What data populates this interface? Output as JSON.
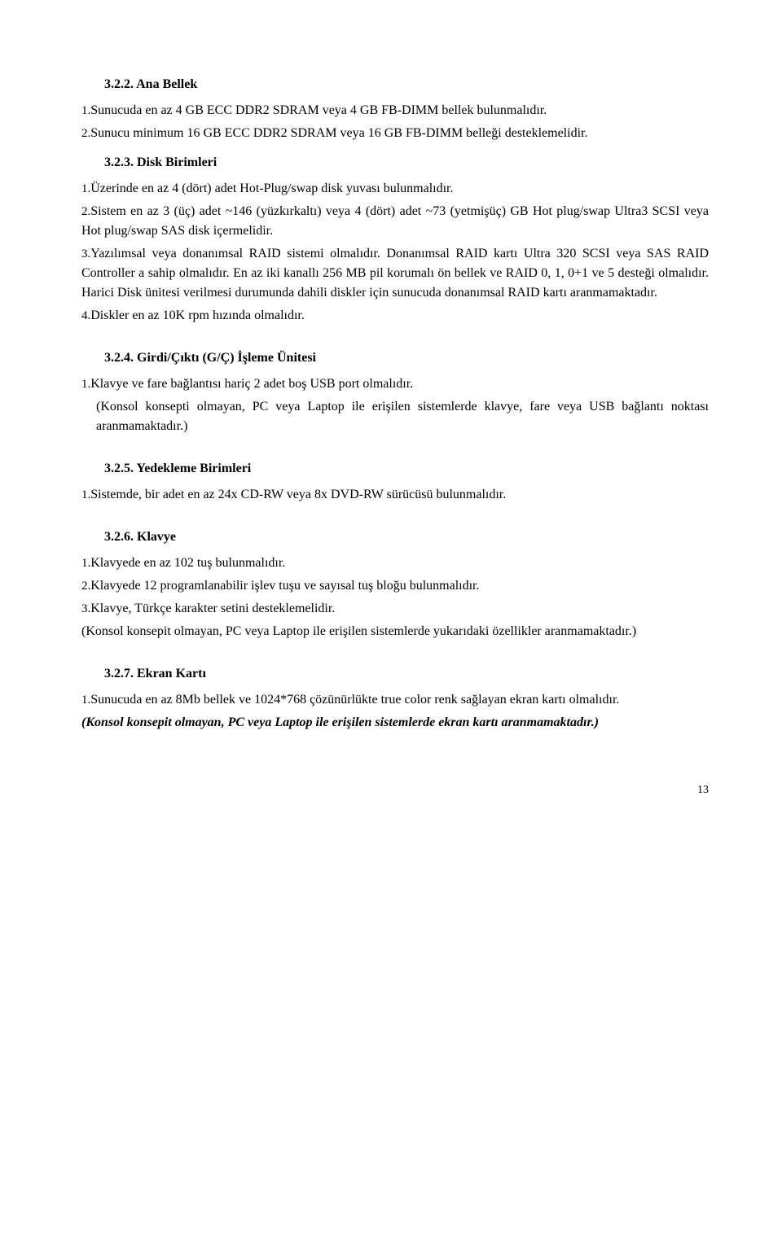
{
  "s322": {
    "title": "3.2.2.  Ana Bellek",
    "p1_num": "1.",
    "p1": "Sunucuda en az 4 GB ECC DDR2 SDRAM veya 4 GB FB-DIMM bellek bulunmalıdır.",
    "p2_num": "2.",
    "p2": "Sunucu minimum 16 GB ECC DDR2 SDRAM veya 16 GB FB-DIMM belleği desteklemelidir."
  },
  "s323": {
    "title": "3.2.3.  Disk Birimleri",
    "p1_num": "1.",
    "p1": "Üzerinde en az 4 (dört) adet Hot-Plug/swap disk yuvası bulunmalıdır.",
    "p2_num": "2.",
    "p2": "Sistem en az 3 (üç) adet  ~146 (yüzkırkaltı) veya 4 (dört) adet ~73 (yetmişüç) GB Hot plug/swap Ultra3 SCSI veya Hot plug/swap SAS disk içermelidir.",
    "p3_num": "3.",
    "p3": "Yazılımsal veya donanımsal RAID sistemi olmalıdır. Donanımsal RAID kartı Ultra 320 SCSI veya SAS RAID Controller a sahip olmalıdır. En az iki kanallı 256 MB pil korumalı ön bellek ve RAID 0, 1, 0+1 ve 5 desteği olmalıdır.  Harici Disk ünitesi verilmesi durumunda dahili diskler için sunucuda donanımsal RAID kartı aranmamaktadır.",
    "p4_num": "4.",
    "p4": "Diskler en az 10K rpm hızında olmalıdır."
  },
  "s324": {
    "title": "3.2.4.  Girdi/Çıktı (G/Ç) İşleme Ünitesi",
    "p1_num": "1.",
    "p1": "Klavye ve fare bağlantısı hariç 2 adet boş USB port olmalıdır.",
    "note": "(Konsol konsepti olmayan, PC veya Laptop ile erişilen sistemlerde klavye, fare veya USB bağlantı noktası aranmamaktadır.)"
  },
  "s325": {
    "title": "3.2.5.  Yedekleme Birimleri",
    "p1_num": "1.",
    "p1": "Sistemde, bir adet en az 24x CD-RW veya 8x DVD-RW sürücüsü bulunmalıdır."
  },
  "s326": {
    "title": "3.2.6.  Klavye",
    "p1_num": "1.",
    "p1": "Klavyede en az 102 tuş bulunmalıdır.",
    "p2_num": "2.",
    "p2": "Klavyede 12 programlanabilir işlev tuşu ve sayısal tuş bloğu bulunmalıdır.",
    "p3_num": "3.",
    "p3": "Klavye, Türkçe karakter setini desteklemelidir.",
    "note": "(Konsol konsepit olmayan, PC veya Laptop ile erişilen sistemlerde yukarıdaki özellikler aranmamaktadır.)"
  },
  "s327": {
    "title": "3.2.7.  Ekran Kartı",
    "p1_num": "1.",
    "p1": "Sunucuda en az 8Mb bellek ve 1024*768 çözünürlükte true color renk sağlayan ekran kartı olmalıdır.",
    "note": "(Konsol konsepit olmayan, PC veya Laptop ile erişilen sistemlerde ekran kartı aranmamaktadır.)"
  },
  "page_number": "13"
}
